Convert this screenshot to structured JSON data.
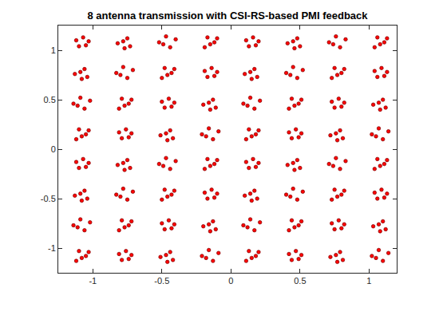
{
  "chart_data": {
    "type": "scatter",
    "title": "8 antenna transmission with CSI-RS-based PMI feedback",
    "color": "#ff0000",
    "marker": "circle",
    "grid": false,
    "xlim": [
      -1.25,
      1.2
    ],
    "ylim": [
      -1.25,
      1.25
    ],
    "xticks": [
      -1,
      -0.5,
      0,
      0.5,
      1
    ],
    "yticks": [
      -1,
      -0.5,
      0,
      0.5,
      1
    ],
    "x": [
      -1.12,
      -1.05,
      -1.07,
      -1.1,
      -1.03,
      -0.75,
      -0.82,
      -0.73,
      -0.78,
      -0.77,
      -0.49,
      -0.4,
      -0.47,
      -0.44,
      -0.52,
      -0.12,
      -0.17,
      -0.19,
      -0.1,
      -0.15,
      0.11,
      0.18,
      0.16,
      0.13,
      0.2,
      0.48,
      0.41,
      0.5,
      0.45,
      0.46,
      0.74,
      0.83,
      0.76,
      0.79,
      0.71,
      1.11,
      1.06,
      1.04,
      1.13,
      1.08,
      -1.06,
      -1.13,
      -1.04,
      -1.09,
      -1.08,
      -0.8,
      -0.71,
      -0.78,
      -0.75,
      -0.83,
      -0.43,
      -0.48,
      -0.5,
      -0.41,
      -0.46,
      -0.19,
      -0.12,
      -0.14,
      -0.17,
      -0.1,
      0.17,
      0.1,
      0.19,
      0.14,
      0.15,
      0.43,
      0.52,
      0.45,
      0.48,
      0.4,
      0.8,
      0.75,
      0.73,
      0.82,
      0.77,
      1.04,
      1.11,
      1.09,
      1.06,
      1.13,
      -1.11,
      -1.02,
      -1.09,
      -1.06,
      -1.14,
      -0.74,
      -0.79,
      -0.81,
      -0.72,
      -0.77,
      -0.5,
      -0.43,
      -0.45,
      -0.48,
      -0.41,
      -0.13,
      -0.2,
      -0.11,
      -0.16,
      -0.15,
      0.12,
      0.21,
      0.14,
      0.17,
      0.09,
      0.49,
      0.44,
      0.42,
      0.51,
      0.46,
      0.73,
      0.8,
      0.78,
      0.75,
      0.82,
      1.1,
      1.03,
      1.12,
      1.07,
      1.08,
      -1.05,
      -1.1,
      -1.12,
      -1.03,
      -1.08,
      -0.81,
      -0.74,
      -0.76,
      -0.79,
      -0.72,
      -0.44,
      -0.51,
      -0.42,
      -0.47,
      -0.46,
      -0.18,
      -0.09,
      -0.16,
      -0.13,
      -0.21,
      0.18,
      0.13,
      0.11,
      0.2,
      0.15,
      0.42,
      0.49,
      0.47,
      0.44,
      0.51,
      0.79,
      0.72,
      0.81,
      0.76,
      0.77,
      1.05,
      1.14,
      1.07,
      1.1,
      1.02,
      -1.12,
      -1.05,
      -1.07,
      -1.1,
      -1.03,
      -0.75,
      -0.82,
      -0.73,
      -0.78,
      -0.77,
      -0.49,
      -0.4,
      -0.47,
      -0.44,
      -0.52,
      -0.12,
      -0.17,
      -0.19,
      -0.1,
      -0.15,
      0.11,
      0.18,
      0.16,
      0.13,
      0.2,
      0.48,
      0.41,
      0.5,
      0.45,
      0.46,
      0.74,
      0.83,
      0.76,
      0.79,
      0.71,
      1.11,
      1.06,
      1.04,
      1.13,
      1.08,
      -1.06,
      -1.13,
      -1.04,
      -1.09,
      -1.08,
      -0.8,
      -0.71,
      -0.78,
      -0.75,
      -0.83,
      -0.43,
      -0.48,
      -0.5,
      -0.41,
      -0.46,
      -0.19,
      -0.12,
      -0.14,
      -0.17,
      -0.1,
      0.17,
      0.1,
      0.19,
      0.14,
      0.15,
      0.43,
      0.52,
      0.45,
      0.48,
      0.4,
      0.8,
      0.75,
      0.73,
      0.82,
      0.77,
      1.04,
      1.11,
      1.09,
      1.06,
      1.13,
      -1.11,
      -1.02,
      -1.09,
      -1.06,
      -1.14,
      -0.74,
      -0.79,
      -0.81,
      -0.72,
      -0.77,
      -0.5,
      -0.43,
      -0.45,
      -0.48,
      -0.41,
      -0.13,
      -0.2,
      -0.11,
      -0.16,
      -0.15,
      0.12,
      0.21,
      0.14,
      0.17,
      0.09,
      0.49,
      0.44,
      0.42,
      0.51,
      0.46,
      0.73,
      0.8,
      0.78,
      0.75,
      0.82,
      1.1,
      1.03,
      1.12,
      1.07,
      1.08,
      -1.05,
      -1.1,
      -1.12,
      -1.03,
      -1.08,
      -0.81,
      -0.74,
      -0.76,
      -0.79,
      -0.72,
      -0.44,
      -0.51,
      -0.42,
      -0.47,
      -0.46,
      -0.18,
      -0.09,
      -0.16,
      -0.13,
      -0.21,
      0.18,
      0.13,
      0.11,
      0.2,
      0.15,
      0.42,
      0.49,
      0.47,
      0.44,
      0.51,
      0.79,
      0.72,
      0.81,
      0.76,
      0.77,
      1.05,
      1.14,
      1.07,
      1.1,
      1.02
    ],
    "y": [
      1.1,
      1.05,
      1.13,
      1.04,
      1.09,
      1.12,
      1.07,
      1.04,
      1.09,
      1.02,
      1.06,
      1.11,
      1.14,
      1.03,
      1.08,
      1.08,
      1.13,
      1.03,
      1.12,
      1.06,
      1.1,
      1.05,
      1.13,
      1.04,
      1.09,
      1.12,
      1.07,
      1.04,
      1.09,
      1.02,
      1.06,
      1.11,
      1.14,
      1.03,
      1.08,
      1.08,
      1.13,
      1.03,
      1.12,
      1.06,
      0.81,
      0.76,
      0.73,
      0.78,
      0.71,
      0.75,
      0.8,
      0.83,
      0.72,
      0.77,
      0.77,
      0.82,
      0.72,
      0.81,
      0.75,
      0.79,
      0.74,
      0.82,
      0.73,
      0.78,
      0.81,
      0.76,
      0.73,
      0.78,
      0.71,
      0.75,
      0.8,
      0.83,
      0.72,
      0.77,
      0.77,
      0.82,
      0.72,
      0.81,
      0.75,
      0.79,
      0.74,
      0.82,
      0.73,
      0.78,
      0.44,
      0.49,
      0.52,
      0.41,
      0.46,
      0.46,
      0.51,
      0.41,
      0.5,
      0.44,
      0.48,
      0.43,
      0.51,
      0.42,
      0.47,
      0.5,
      0.45,
      0.42,
      0.47,
      0.4,
      0.44,
      0.49,
      0.52,
      0.41,
      0.46,
      0.46,
      0.51,
      0.41,
      0.5,
      0.44,
      0.48,
      0.43,
      0.51,
      0.42,
      0.47,
      0.5,
      0.45,
      0.42,
      0.47,
      0.4,
      0.15,
      0.2,
      0.1,
      0.19,
      0.13,
      0.17,
      0.12,
      0.2,
      0.11,
      0.16,
      0.19,
      0.14,
      0.11,
      0.16,
      0.09,
      0.13,
      0.18,
      0.21,
      0.1,
      0.15,
      0.15,
      0.2,
      0.1,
      0.19,
      0.13,
      0.17,
      0.12,
      0.2,
      0.11,
      0.16,
      0.19,
      0.14,
      0.11,
      0.16,
      0.09,
      0.13,
      0.18,
      0.21,
      0.1,
      0.15,
      -0.13,
      -0.18,
      -0.1,
      -0.19,
      -0.14,
      -0.11,
      -0.16,
      -0.19,
      -0.14,
      -0.21,
      -0.17,
      -0.12,
      -0.09,
      -0.2,
      -0.15,
      -0.15,
      -0.1,
      -0.2,
      -0.11,
      -0.17,
      -0.13,
      -0.18,
      -0.1,
      -0.19,
      -0.14,
      -0.11,
      -0.16,
      -0.19,
      -0.14,
      -0.21,
      -0.17,
      -0.12,
      -0.09,
      -0.2,
      -0.15,
      -0.15,
      -0.1,
      -0.2,
      -0.11,
      -0.17,
      -0.42,
      -0.47,
      -0.5,
      -0.45,
      -0.52,
      -0.48,
      -0.43,
      -0.4,
      -0.51,
      -0.46,
      -0.46,
      -0.41,
      -0.51,
      -0.42,
      -0.48,
      -0.44,
      -0.49,
      -0.41,
      -0.5,
      -0.45,
      -0.42,
      -0.47,
      -0.5,
      -0.45,
      -0.52,
      -0.48,
      -0.43,
      -0.4,
      -0.51,
      -0.46,
      -0.46,
      -0.41,
      -0.51,
      -0.42,
      -0.48,
      -0.44,
      -0.49,
      -0.41,
      -0.5,
      -0.45,
      -0.79,
      -0.74,
      -0.71,
      -0.82,
      -0.77,
      -0.77,
      -0.72,
      -0.82,
      -0.73,
      -0.79,
      -0.75,
      -0.8,
      -0.72,
      -0.81,
      -0.76,
      -0.73,
      -0.78,
      -0.81,
      -0.76,
      -0.83,
      -0.79,
      -0.74,
      -0.71,
      -0.82,
      -0.77,
      -0.77,
      -0.72,
      -0.82,
      -0.73,
      -0.79,
      -0.75,
      -0.8,
      -0.72,
      -0.81,
      -0.76,
      -0.73,
      -0.78,
      -0.81,
      -0.76,
      -0.83,
      -1.08,
      -1.03,
      -1.13,
      -1.04,
      -1.1,
      -1.06,
      -1.11,
      -1.03,
      -1.12,
      -1.07,
      -1.04,
      -1.09,
      -1.12,
      -1.07,
      -1.14,
      -1.1,
      -1.05,
      -1.02,
      -1.13,
      -1.08,
      -1.08,
      -1.03,
      -1.13,
      -1.04,
      -1.1,
      -1.06,
      -1.11,
      -1.03,
      -1.12,
      -1.07,
      -1.04,
      -1.09,
      -1.12,
      -1.07,
      -1.14,
      -1.1,
      -1.05,
      -1.02,
      -1.13,
      -1.08
    ]
  }
}
